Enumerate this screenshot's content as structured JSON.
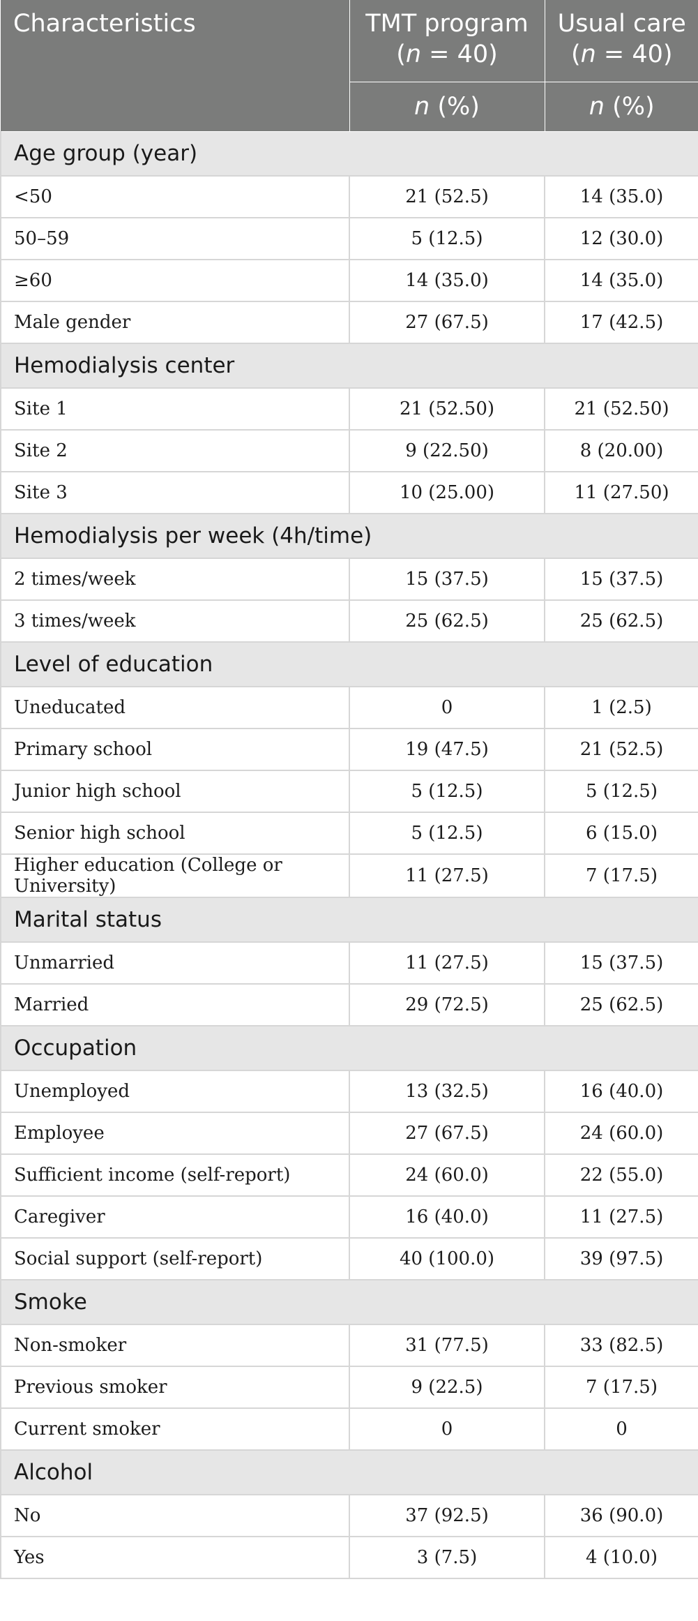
{
  "header": {
    "col1": "Characteristics",
    "col2_line1": "TMT program",
    "col2_n": "n",
    "col2_count": " = 40)",
    "col3_line1": "Usual care",
    "col3_n": "n",
    "col3_count": " = 40)",
    "sub_n": "n",
    "sub_pct": " (%)"
  },
  "rows": [
    {
      "type": "section",
      "label": "Age group (year)"
    },
    {
      "type": "data",
      "label": "<50",
      "tmt": "21 (52.5)",
      "usual": "14 (35.0)"
    },
    {
      "type": "data",
      "label": "50–59",
      "tmt": "5 (12.5)",
      "usual": "12 (30.0)"
    },
    {
      "type": "data",
      "label": "≥60",
      "tmt": "14 (35.0)",
      "usual": "14 (35.0)"
    },
    {
      "type": "data",
      "label": "Male gender",
      "tmt": "27 (67.5)",
      "usual": "17 (42.5)"
    },
    {
      "type": "section",
      "label": "Hemodialysis center"
    },
    {
      "type": "data",
      "label": "Site 1",
      "tmt": "21 (52.50)",
      "usual": "21 (52.50)"
    },
    {
      "type": "data",
      "label": "Site 2",
      "tmt": "9 (22.50)",
      "usual": "8 (20.00)"
    },
    {
      "type": "data",
      "label": "Site 3",
      "tmt": "10 (25.00)",
      "usual": "11 (27.50)"
    },
    {
      "type": "section",
      "label": "Hemodialysis per week (4h/time)"
    },
    {
      "type": "data",
      "label": "2 times/week",
      "tmt": "15 (37.5)",
      "usual": "15 (37.5)"
    },
    {
      "type": "data",
      "label": "3 times/week",
      "tmt": "25 (62.5)",
      "usual": "25 (62.5)"
    },
    {
      "type": "section",
      "label": "Level of education"
    },
    {
      "type": "data",
      "label": "Uneducated",
      "tmt": "0",
      "usual": "1 (2.5)"
    },
    {
      "type": "data",
      "label": "Primary school",
      "tmt": "19 (47.5)",
      "usual": "21 (52.5)"
    },
    {
      "type": "data",
      "label": "Junior high school",
      "tmt": "5 (12.5)",
      "usual": "5 (12.5)"
    },
    {
      "type": "data",
      "label": "Senior high school",
      "tmt": "5 (12.5)",
      "usual": "6 (15.0)"
    },
    {
      "type": "data",
      "label": "Higher education (College or University)",
      "tmt": "11 (27.5)",
      "usual": "7 (17.5)"
    },
    {
      "type": "section",
      "label": "Marital status"
    },
    {
      "type": "data",
      "label": "Unmarried",
      "tmt": "11 (27.5)",
      "usual": "15 (37.5)"
    },
    {
      "type": "data",
      "label": "Married",
      "tmt": "29 (72.5)",
      "usual": "25 (62.5)"
    },
    {
      "type": "section",
      "label": "Occupation"
    },
    {
      "type": "data",
      "label": "Unemployed",
      "tmt": "13 (32.5)",
      "usual": "16 (40.0)"
    },
    {
      "type": "data",
      "label": "Employee",
      "tmt": "27 (67.5)",
      "usual": "24 (60.0)"
    },
    {
      "type": "data",
      "label": "Sufficient income (self-report)",
      "tmt": "24 (60.0)",
      "usual": "22 (55.0)"
    },
    {
      "type": "data",
      "label": "Caregiver",
      "tmt": "16 (40.0)",
      "usual": "11 (27.5)"
    },
    {
      "type": "data",
      "label": "Social support (self-report)",
      "tmt": "40 (100.0)",
      "usual": "39 (97.5)"
    },
    {
      "type": "section",
      "label": "Smoke"
    },
    {
      "type": "data",
      "label": "Non-smoker",
      "tmt": "31 (77.5)",
      "usual": "33 (82.5)"
    },
    {
      "type": "data",
      "label": "Previous smoker",
      "tmt": "9 (22.5)",
      "usual": "7 (17.5)"
    },
    {
      "type": "data",
      "label": "Current smoker",
      "tmt": "0",
      "usual": "0"
    },
    {
      "type": "section",
      "label": "Alcohol"
    },
    {
      "type": "data",
      "label": "No",
      "tmt": "37 (92.5)",
      "usual": "36 (90.0)"
    },
    {
      "type": "data",
      "label": "Yes",
      "tmt": "3 (7.5)",
      "usual": "4 (10.0)"
    }
  ]
}
